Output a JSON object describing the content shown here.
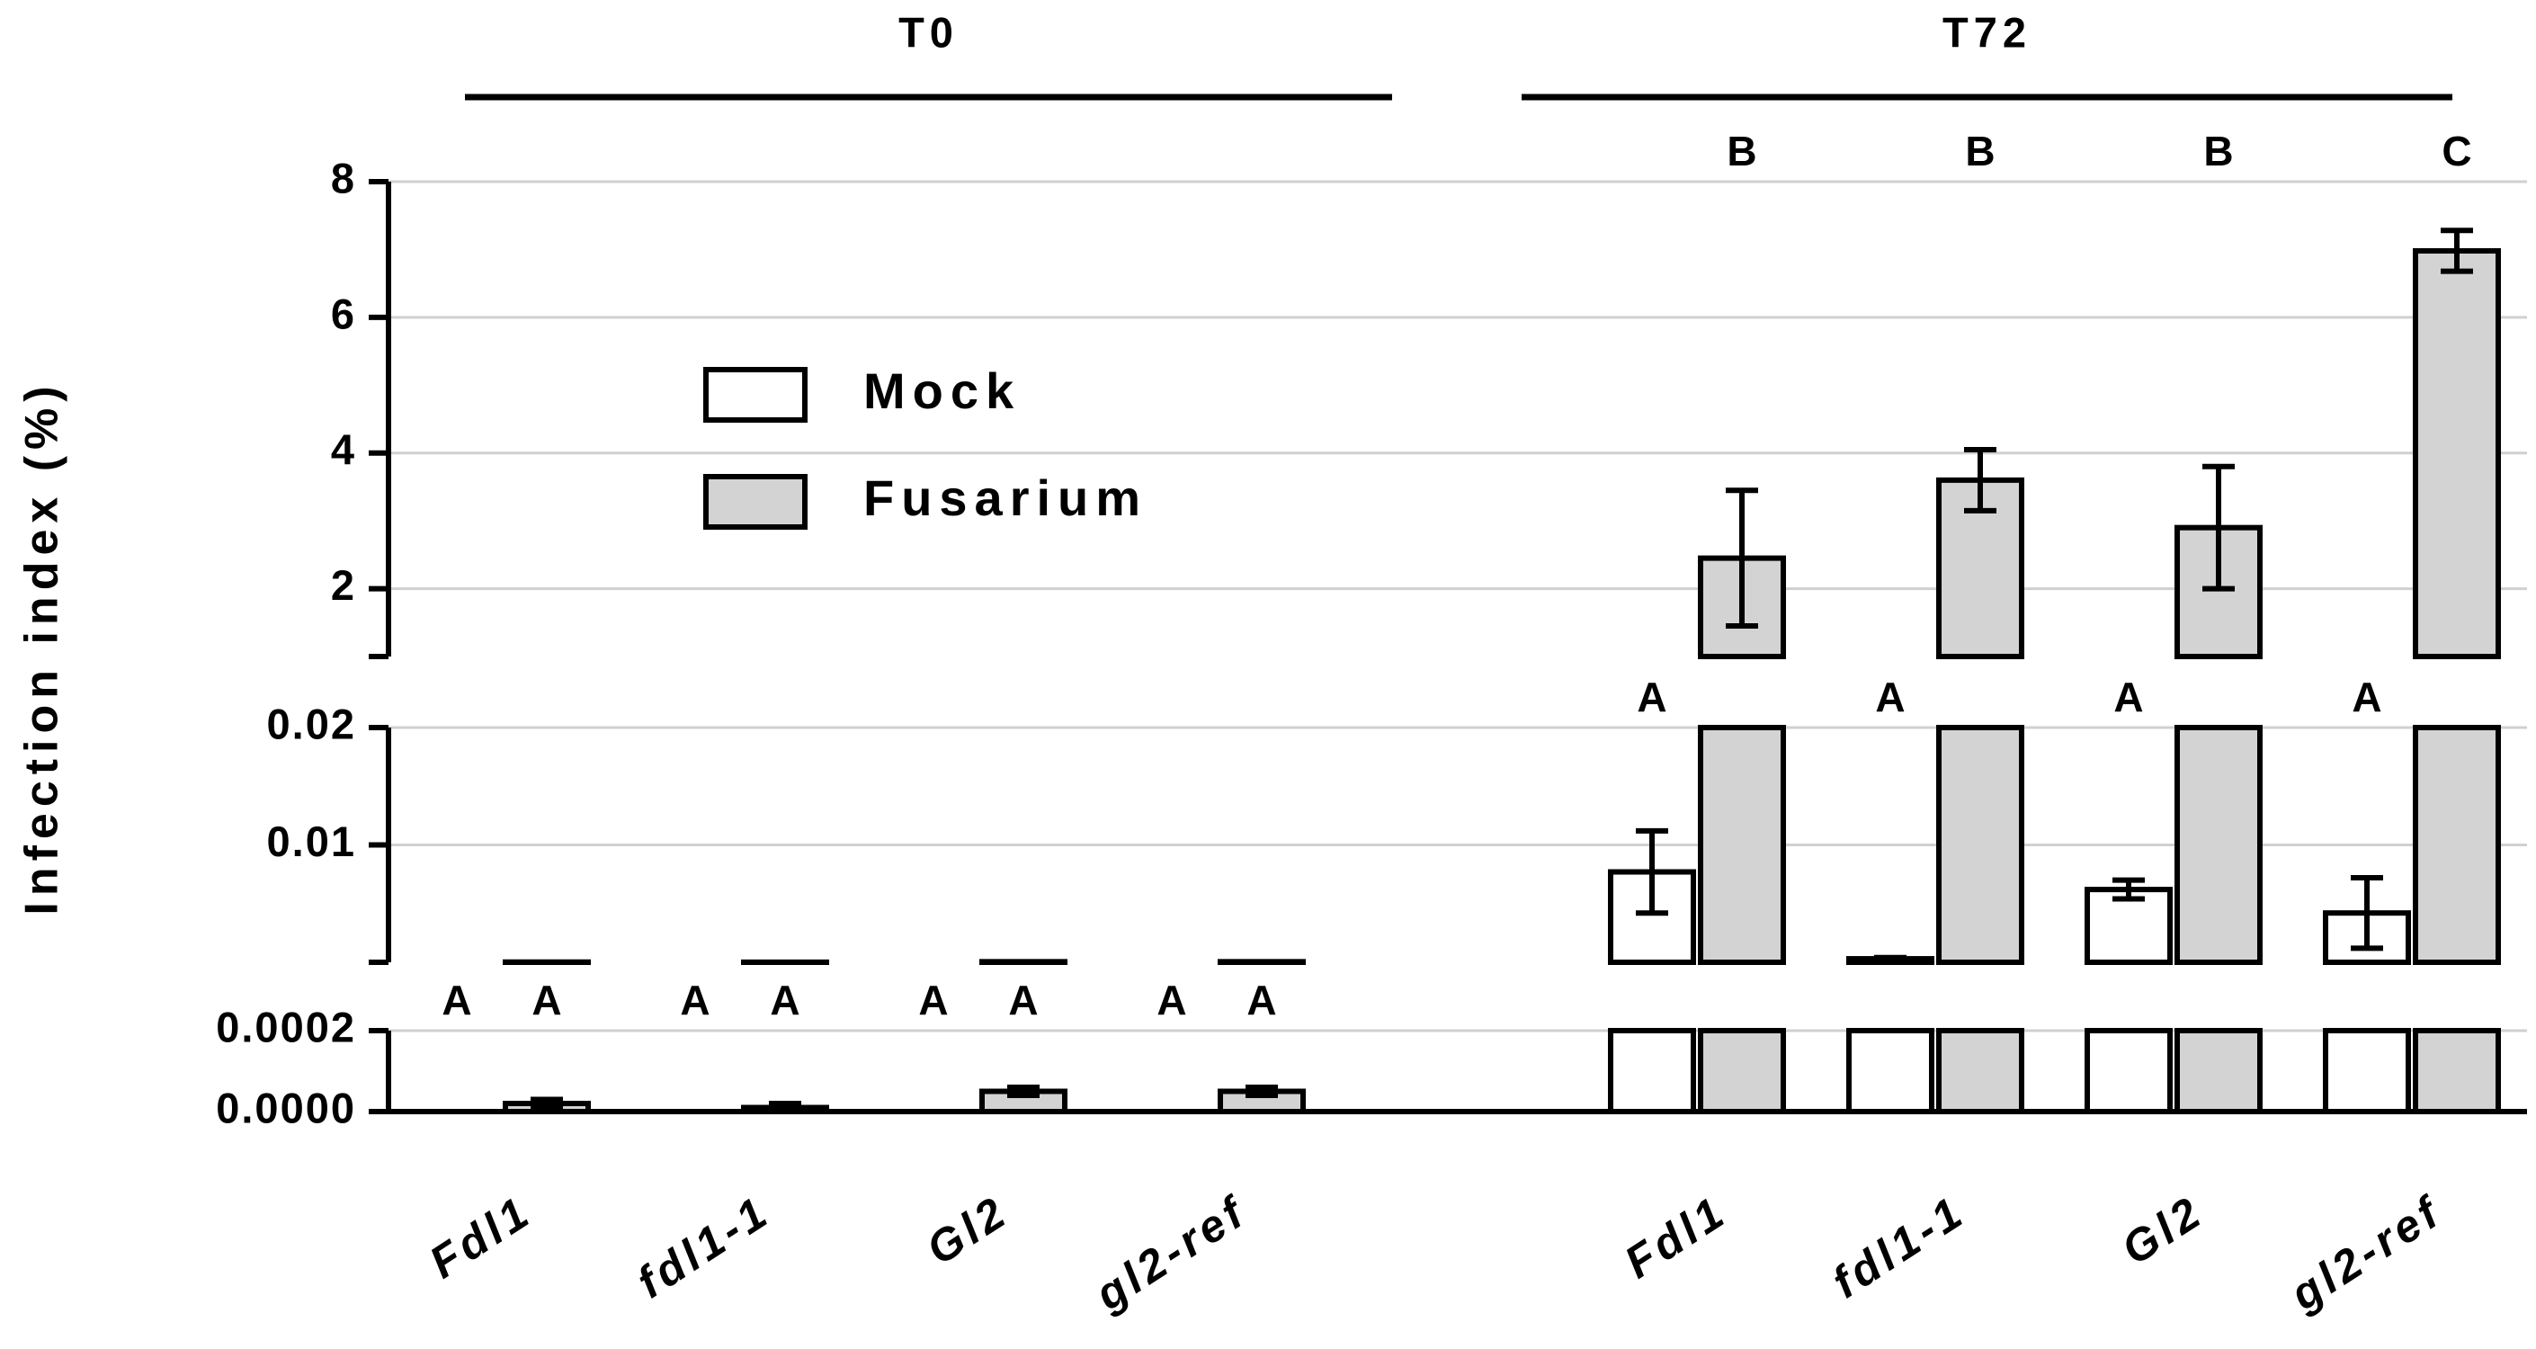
{
  "chart_data": {
    "type": "bar",
    "ylabel": "Infection index (%)",
    "group_labels": [
      "T0",
      "T72"
    ],
    "categories": [
      "Fdl1",
      "fdl1-1",
      "Gl2",
      "gl2-ref",
      "Fdl1",
      "fdl1-1",
      "Gl2",
      "gl2-ref"
    ],
    "y_segments": [
      {
        "ylim": [
          0,
          0.0002
        ],
        "yticks": [
          {
            "value": 0,
            "label": "0.0000"
          },
          {
            "value": 0.0002,
            "label": "0.0002"
          }
        ]
      },
      {
        "ylim": [
          0,
          0.02
        ],
        "yticks": [
          0.01,
          0.02
        ]
      },
      {
        "ylim": [
          1,
          8
        ],
        "yticks": [
          2,
          4,
          6,
          8
        ]
      }
    ],
    "grid": true,
    "series": [
      {
        "name": "Mock",
        "color": "#ffffff",
        "values": [
          0,
          0,
          0,
          0,
          0.0077,
          0.0003,
          0.0062,
          0.0042
        ],
        "errors": [
          0,
          0,
          0,
          0,
          0.0035,
          0.0001,
          0.0008,
          0.003
        ],
        "letters": [
          "A",
          "A",
          "A",
          "A",
          "A",
          "A",
          "A",
          "A"
        ]
      },
      {
        "name": "Fusarium",
        "color": "#d3d3d3",
        "values": [
          2e-05,
          1e-05,
          5e-05,
          5e-05,
          2.45,
          3.6,
          2.9,
          6.98
        ],
        "errors": [
          1e-05,
          1e-05,
          1e-05,
          1e-05,
          1.0,
          0.45,
          0.9,
          0.3
        ],
        "letters": [
          "A",
          "A",
          "A",
          "A",
          "B",
          "B",
          "B",
          "C"
        ]
      }
    ]
  }
}
